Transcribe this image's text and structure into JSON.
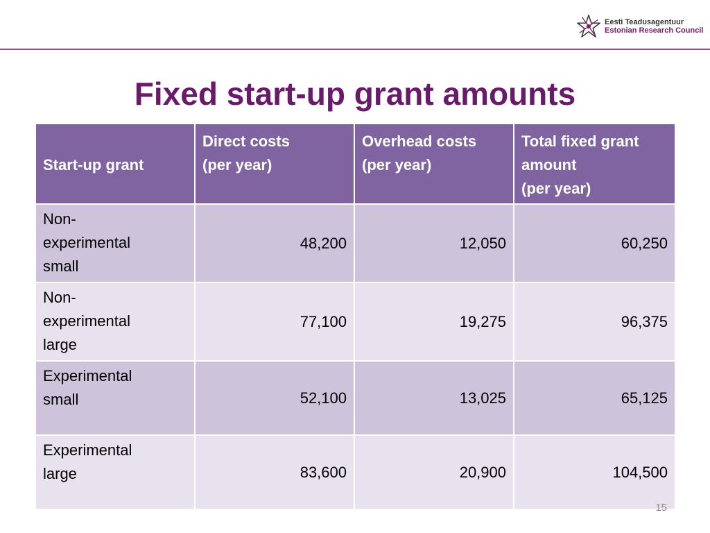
{
  "logo": {
    "line1": "Eesti Teadusagentuur",
    "line2": "Estonian Research Council",
    "accent_color": "#7a1a70"
  },
  "slide": {
    "title": "Fixed start-up grant amounts",
    "page_number": "15",
    "title_color": "#6a1a6b",
    "header_color": "#8064a2"
  },
  "table": {
    "headers": [
      [
        "Start-up grant"
      ],
      [
        "Direct costs",
        "(per year)"
      ],
      [
        "Overhead costs",
        "(per year)"
      ],
      [
        "Total fixed grant",
        "amount",
        "(per year)"
      ]
    ],
    "rows": [
      {
        "name": [
          "Non-",
          "experimental",
          "small"
        ],
        "direct": "48,200",
        "overhead": "12,050",
        "total": "60,250"
      },
      {
        "name": [
          "Non-",
          "experimental",
          "large"
        ],
        "direct": "77,100",
        "overhead": "19,275",
        "total": "96,375"
      },
      {
        "name": [
          "Experimental",
          "small"
        ],
        "direct": "52,100",
        "overhead": "13,025",
        "total": "65,125"
      },
      {
        "name": [
          "Experimental",
          "large"
        ],
        "direct": "83,600",
        "overhead": "20,900",
        "total": "104,500"
      }
    ]
  }
}
